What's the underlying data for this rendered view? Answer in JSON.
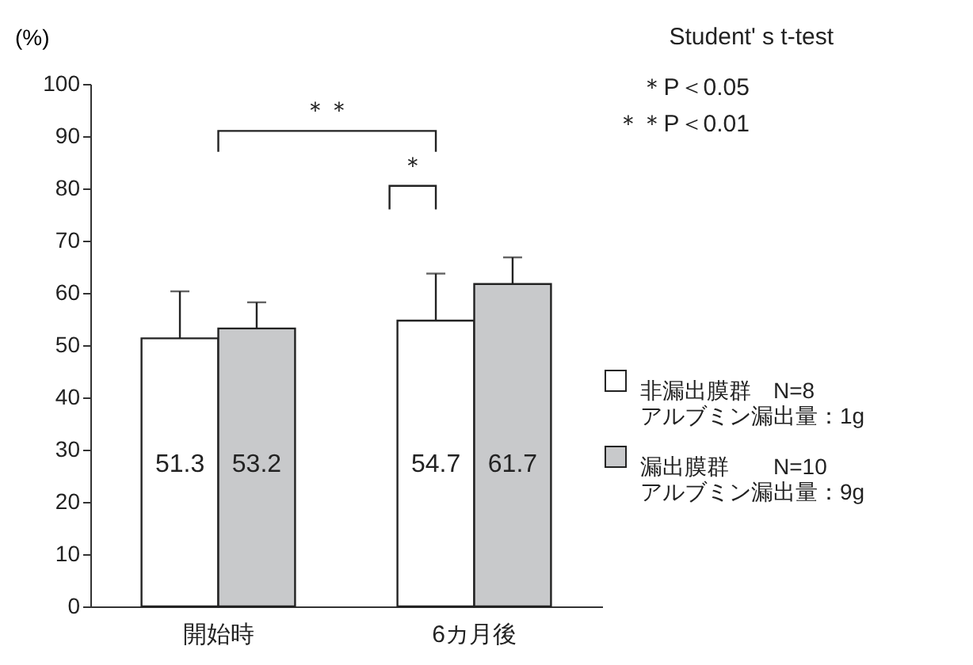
{
  "chart_data": {
    "type": "bar",
    "title": "Student' s t-test",
    "ylabel": "(%)",
    "categories": [
      "開始時",
      "6カ月後"
    ],
    "series": [
      {
        "name": "非漏出膜群　N=8\nアルブミン漏出量：1g",
        "color": "#ffffff",
        "values": [
          51.3,
          54.7
        ],
        "errors": [
          [
            51.3,
            60.3
          ],
          [
            54.7,
            63.7
          ]
        ]
      },
      {
        "name": "漏出膜群　　N=10\nアルブミン漏出量：9g",
        "color": "#c8c9cb",
        "values": [
          53.2,
          61.7
        ],
        "errors": [
          [
            53.2,
            58.2
          ],
          [
            61.7,
            66.8
          ]
        ]
      }
    ],
    "ylim": [
      0,
      100
    ],
    "yticks": [
      0,
      10,
      20,
      30,
      40,
      50,
      60,
      70,
      80,
      90,
      100
    ],
    "grid": false,
    "legend": "right",
    "data_labels": true,
    "annotations": [
      "＊＊",
      "＊",
      "＊P＜0.05",
      "＊＊P＜0.01"
    ]
  }
}
